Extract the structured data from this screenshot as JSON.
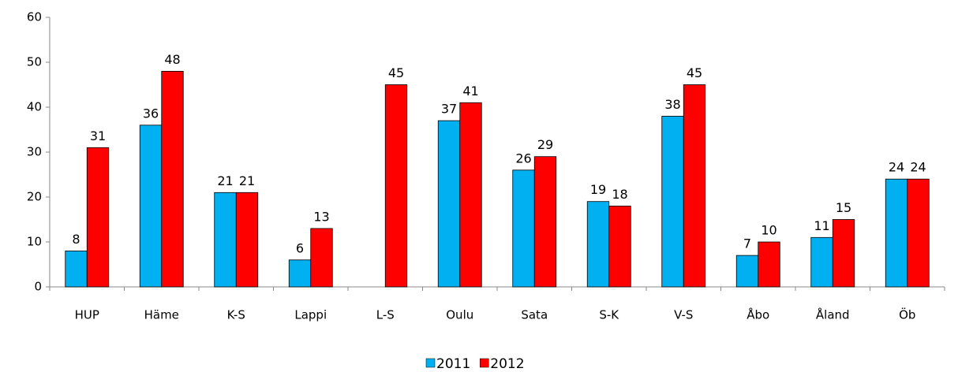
{
  "chart_data": {
    "type": "bar",
    "categories": [
      "HUP",
      "Häme",
      "K-S",
      "Lappi",
      "L-S",
      "Oulu",
      "Sata",
      "S-K",
      "V-S",
      "Åbo",
      "Åland",
      "Öb"
    ],
    "series": [
      {
        "name": "2011",
        "color": "#00b0f0",
        "values": [
          8,
          36,
          21,
          6,
          null,
          37,
          26,
          19,
          38,
          7,
          11,
          24
        ]
      },
      {
        "name": "2012",
        "color": "#ff0000",
        "values": [
          31,
          48,
          21,
          13,
          45,
          41,
          29,
          18,
          45,
          10,
          15,
          24
        ]
      }
    ],
    "ylim": [
      0,
      60
    ],
    "yticks": [
      0,
      10,
      20,
      30,
      40,
      50,
      60
    ],
    "grid": false,
    "legend": "bottom"
  }
}
